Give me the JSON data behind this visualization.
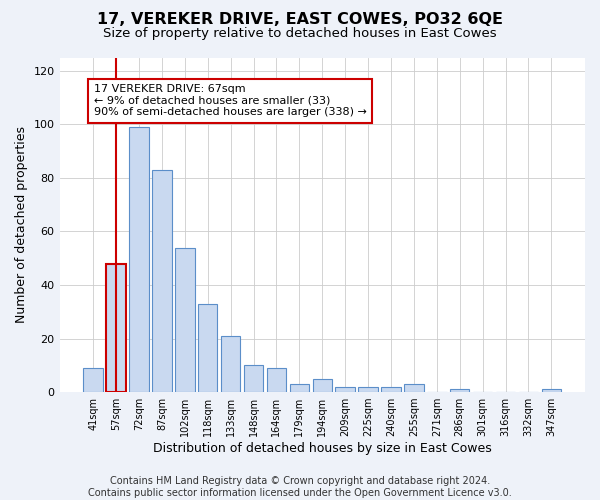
{
  "title": "17, VEREKER DRIVE, EAST COWES, PO32 6QE",
  "subtitle": "Size of property relative to detached houses in East Cowes",
  "xlabel": "Distribution of detached houses by size in East Cowes",
  "ylabel": "Number of detached properties",
  "categories": [
    "41sqm",
    "57sqm",
    "72sqm",
    "87sqm",
    "102sqm",
    "118sqm",
    "133sqm",
    "148sqm",
    "164sqm",
    "179sqm",
    "194sqm",
    "209sqm",
    "225sqm",
    "240sqm",
    "255sqm",
    "271sqm",
    "286sqm",
    "301sqm",
    "316sqm",
    "332sqm",
    "347sqm"
  ],
  "values": [
    9,
    48,
    99,
    83,
    54,
    33,
    21,
    10,
    9,
    3,
    5,
    2,
    2,
    2,
    3,
    0,
    1,
    0,
    0,
    0,
    1
  ],
  "bar_color": "#c9d9f0",
  "bar_edge_color": "#5b8ec9",
  "highlight_bar_index": 1,
  "highlight_bar_edge_color": "#cc0000",
  "annotation_text": "17 VEREKER DRIVE: 67sqm\n← 9% of detached houses are smaller (33)\n90% of semi-detached houses are larger (338) →",
  "annotation_box_color": "white",
  "annotation_box_edge_color": "#cc0000",
  "vline_x": 1,
  "ylim": [
    0,
    125
  ],
  "yticks": [
    0,
    20,
    40,
    60,
    80,
    100,
    120
  ],
  "footer_text": "Contains HM Land Registry data © Crown copyright and database right 2024.\nContains public sector information licensed under the Open Government Licence v3.0.",
  "background_color": "#eef2f9",
  "plot_background_color": "#ffffff",
  "grid_color": "#cccccc",
  "title_fontsize": 11.5,
  "subtitle_fontsize": 9.5,
  "xlabel_fontsize": 9,
  "ylabel_fontsize": 9,
  "footer_fontsize": 7,
  "annotation_fontsize": 8
}
